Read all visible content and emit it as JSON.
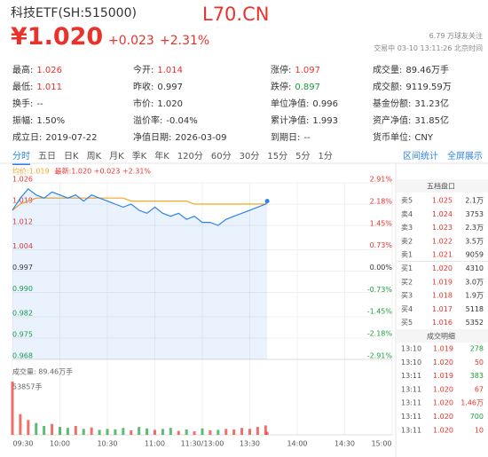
{
  "header": {
    "name": "科技ETF(SH:515000)",
    "watermark": "L70.CN",
    "price": "¥1.020",
    "change": "+0.023",
    "change_pct": "+2.31%",
    "followers": "6.79 万球友关注",
    "status": "交易中 03-10 13:11:26 北京时间"
  },
  "stats": [
    [
      {
        "label": "最高:",
        "value": "1.026",
        "color": "#e8322c"
      },
      {
        "label": "最低:",
        "value": "1.011",
        "color": "#e8322c"
      },
      {
        "label": "换手:",
        "value": "--"
      },
      {
        "label": "振幅:",
        "value": "1.50%"
      },
      {
        "label": "成立日:",
        "value": "2019-07-22"
      }
    ],
    [
      {
        "label": "今开:",
        "value": "1.014",
        "color": "#e8322c"
      },
      {
        "label": "昨收:",
        "value": "0.997"
      },
      {
        "label": "市价:",
        "value": "1.020"
      },
      {
        "label": "溢价率:",
        "value": "-0.04%"
      },
      {
        "label": "净值日期:",
        "value": "2026-03-09"
      }
    ],
    [
      {
        "label": "涨停:",
        "value": "1.097",
        "color": "#e8322c"
      },
      {
        "label": "跌停:",
        "value": "0.897",
        "color": "#1a9e3a"
      },
      {
        "label": "单位净值:",
        "value": "0.996"
      },
      {
        "label": "累计净值:",
        "value": "1.993"
      },
      {
        "label": "到期日:",
        "value": "--"
      }
    ],
    [
      {
        "label": "成交量:",
        "value": "89.46万手"
      },
      {
        "label": "成交额:",
        "value": "9119.59万"
      },
      {
        "label": "基金份额:",
        "value": "31.23亿"
      },
      {
        "label": "资产净值:",
        "value": "31.85亿"
      },
      {
        "label": "货币单位:",
        "value": "CNY"
      }
    ]
  ],
  "tabs": [
    "分时",
    "五日",
    "日K",
    "周K",
    "月K",
    "季K",
    "年K",
    "120分",
    "60分",
    "30分",
    "15分",
    "5分",
    "1分"
  ],
  "active_tab": 0,
  "tools": [
    "区间统计",
    "全屏展示"
  ],
  "chart_data": {
    "type": "line",
    "up_color": "#e8322c",
    "down_color": "#1a9e3a",
    "grid": true,
    "x": [
      0,
      5,
      10,
      15,
      20,
      25,
      30,
      35,
      40,
      45,
      50,
      55,
      60,
      65,
      70,
      75,
      80,
      85,
      90,
      95,
      100,
      105,
      110,
      115,
      120,
      125,
      130,
      135,
      140,
      145,
      150,
      155,
      160,
      161
    ],
    "xlim": [
      0,
      240
    ],
    "xticks": [
      {
        "value": 0,
        "label": "09:30"
      },
      {
        "value": 30,
        "label": "10:00"
      },
      {
        "value": 60,
        "label": "10:30"
      },
      {
        "value": 90,
        "label": "11:00"
      },
      {
        "value": 120,
        "label": "11:30/13:00"
      },
      {
        "value": 150,
        "label": "13:30"
      },
      {
        "value": 180,
        "label": "14:00"
      },
      {
        "value": 210,
        "label": "14:30"
      },
      {
        "value": 240,
        "label": "15:00"
      }
    ],
    "ylim": [
      0.968,
      1.026
    ],
    "yticks": [
      1.026,
      1.019,
      1.012,
      1.004,
      0.997,
      {
        "value": 0.99,
        "label": "0.990"
      },
      0.982,
      0.975,
      0.968
    ],
    "y2lim": [
      -2.91,
      2.91
    ],
    "y2ticks": [
      {
        "value": 2.91,
        "label": "2.91%"
      },
      {
        "value": 2.18,
        "label": "2.18%"
      },
      {
        "value": 1.45,
        "label": "1.45%"
      },
      {
        "value": 0.73,
        "label": "0.73%"
      },
      {
        "value": 0,
        "label": "0.00%"
      },
      {
        "value": -0.73,
        "label": "-0.73%"
      },
      {
        "value": -1.45,
        "label": "-1.45%"
      },
      {
        "value": -2.18,
        "label": "-2.18%"
      },
      {
        "value": -2.91,
        "label": "-2.91%"
      }
    ],
    "series": [
      {
        "name": "均价:1.019",
        "color": "#f5a623",
        "values": [
          1.017,
          1.019,
          1.02,
          1.021,
          1.021,
          1.021,
          1.021,
          1.021,
          1.021,
          1.021,
          1.021,
          1.021,
          1.021,
          1.021,
          1.021,
          1.02,
          1.02,
          1.02,
          1.02,
          1.02,
          1.02,
          1.02,
          1.02,
          1.019,
          1.019,
          1.019,
          1.019,
          1.019,
          1.019,
          1.019,
          1.019,
          1.019,
          1.019,
          1.019
        ]
      },
      {
        "name": "最新:1.020 +0.023 +2.31%",
        "color": "#2b83e8",
        "values": [
          1.017,
          1.021,
          1.024,
          1.022,
          1.021,
          1.023,
          1.022,
          1.021,
          1.022,
          1.02,
          1.022,
          1.021,
          1.02,
          1.019,
          1.018,
          1.019,
          1.017,
          1.016,
          1.018,
          1.016,
          1.015,
          1.016,
          1.014,
          1.015,
          1.013,
          1.013,
          1.012,
          1.014,
          1.015,
          1.016,
          1.017,
          1.018,
          1.019,
          1.02
        ]
      }
    ],
    "volume": {
      "title": "成交量: 89.46万手",
      "ylim": [
        0,
        53857
      ],
      "yticks": [
        {
          "value": 53857,
          "label": "53857手"
        }
      ],
      "values": [
        53857,
        21000,
        15000,
        12000,
        9000,
        11000,
        8000,
        7000,
        9000,
        6000,
        7500,
        5000,
        6000,
        5500,
        7000,
        4500,
        8000,
        6500,
        5000,
        6000,
        7000,
        4000,
        5500,
        3500,
        6500,
        4500,
        5000,
        6000,
        5500,
        7000,
        6000,
        8000,
        9500,
        3000
      ]
    }
  },
  "order_book": {
    "title": "五档盘口",
    "price_color": "#e8322c",
    "rows": [
      {
        "label": "卖5",
        "price": "1.025",
        "volume": "2.1万"
      },
      {
        "label": "卖4",
        "price": "1.024",
        "volume": "3753"
      },
      {
        "label": "卖3",
        "price": "1.023",
        "volume": "2.3万"
      },
      {
        "label": "卖2",
        "price": "1.022",
        "volume": "3.5万"
      },
      {
        "label": "卖1",
        "price": "1.021",
        "volume": "9059"
      },
      {
        "label": "买1",
        "price": "1.020",
        "volume": "4310"
      },
      {
        "label": "买2",
        "price": "1.019",
        "volume": "3.0万"
      },
      {
        "label": "买3",
        "price": "1.018",
        "volume": "1.9万"
      },
      {
        "label": "买4",
        "price": "1.017",
        "volume": "5118"
      },
      {
        "label": "买5",
        "price": "1.016",
        "volume": "5352"
      }
    ]
  },
  "trades": {
    "title": "成交明细",
    "price_color": "#e8322c",
    "rows": [
      {
        "time": "13:10",
        "price": "1.019",
        "volume": "278",
        "color": "#1a9e3a"
      },
      {
        "time": "13:10",
        "price": "1.020",
        "volume": "50",
        "color": "#e8322c"
      },
      {
        "time": "13:11",
        "price": "1.019",
        "volume": "383",
        "color": "#1a9e3a"
      },
      {
        "time": "13:11",
        "price": "1.020",
        "volume": "67",
        "color": "#e8322c"
      },
      {
        "time": "13:11",
        "price": "1.020",
        "volume": "1.46万",
        "color": "#e8322c"
      },
      {
        "time": "13:11",
        "price": "1.020",
        "volume": "700",
        "color": "#1a9e3a"
      },
      {
        "time": "13:11",
        "price": "1.020",
        "volume": "10",
        "color": "#e8322c"
      }
    ]
  }
}
